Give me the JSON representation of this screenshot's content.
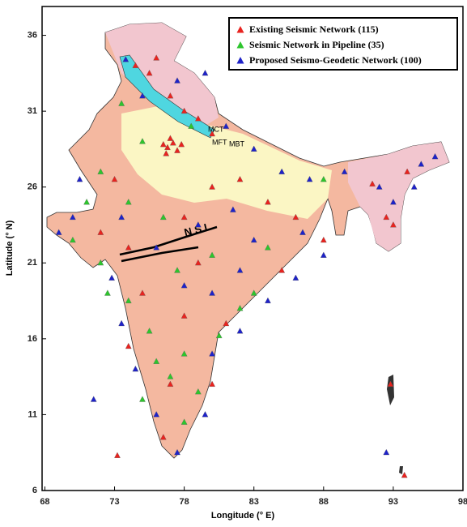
{
  "chart_data": {
    "type": "scatter",
    "x_label": "Longitude (° E)",
    "y_label": "Latitude (° N)",
    "xlim": [
      67.8,
      98
    ],
    "ylim": [
      6,
      37.9
    ],
    "xticks": [
      68,
      73,
      78,
      83,
      88,
      93,
      98
    ],
    "yticks": [
      6,
      11,
      16,
      21,
      26,
      31,
      36
    ],
    "annotations": [
      "MCT",
      "MFT",
      "MBT",
      "N S L"
    ],
    "series": [
      {
        "name": "Existing Seismic Network (115)",
        "color": "#e8231f",
        "x": [
          74.5,
          75.5,
          76,
          77,
          78,
          79,
          80,
          76.8,
          77.2,
          77.5,
          76.5,
          77,
          77.8,
          76.7,
          73,
          72,
          74,
          78,
          80,
          82,
          84,
          86,
          88,
          91.5,
          92.5,
          94,
          93,
          75,
          79,
          81,
          77,
          80,
          76.5,
          73.2,
          92.8,
          93.8,
          85,
          78,
          74
        ],
        "values": [
          34,
          33.5,
          34.5,
          32,
          31,
          30.5,
          29.5,
          28.6,
          28.9,
          28.4,
          28.8,
          29.2,
          28.8,
          28.2,
          26.5,
          23,
          22,
          24,
          26,
          26.5,
          25,
          24,
          22.5,
          26.2,
          24,
          27,
          23.5,
          19,
          21,
          17,
          13,
          13,
          9.5,
          8.3,
          13,
          7,
          20.5,
          17.5,
          15.5
        ]
      },
      {
        "name": "Seismic Network in Pipeline (35)",
        "color": "#2dc52d",
        "x": [
          73.5,
          75,
          78.5,
          72,
          71,
          74,
          76.5,
          70,
          72,
          77.5,
          74,
          80,
          82,
          78,
          76,
          77,
          78,
          75,
          84,
          88,
          80.5,
          83,
          72.5,
          75.5,
          79
        ],
        "values": [
          31.5,
          29,
          30,
          27,
          25,
          25,
          24,
          22.5,
          21,
          20.5,
          18.5,
          21.5,
          18,
          15,
          14.5,
          13.5,
          10.5,
          12,
          22,
          26.5,
          16.2,
          19,
          19,
          16.5,
          12.5
        ]
      },
      {
        "name": "Proposed Seismo-Geodetic Network (100)",
        "color": "#1e22c8",
        "x": [
          73.8,
          75,
          77.5,
          79.5,
          81,
          83,
          85,
          87,
          89.5,
          92,
          95,
          96,
          94.5,
          93,
          70,
          69,
          70.5,
          73.5,
          76,
          79,
          81.5,
          83,
          86.5,
          88,
          86,
          84,
          82,
          80,
          79.5,
          77.5,
          76,
          74.5,
          73.5,
          72.8,
          78,
          80,
          82,
          71.5,
          92.5
        ],
        "values": [
          34.4,
          32,
          33,
          33.5,
          30,
          28.5,
          27,
          26.5,
          27,
          26,
          27.5,
          28,
          26,
          25,
          24,
          23,
          26.5,
          24,
          22,
          23.5,
          24.5,
          22.5,
          23,
          21.5,
          20,
          18.5,
          16.5,
          15,
          11,
          8.5,
          11,
          14,
          17,
          20,
          19.5,
          19,
          20.5,
          12,
          8.5
        ]
      }
    ]
  }
}
